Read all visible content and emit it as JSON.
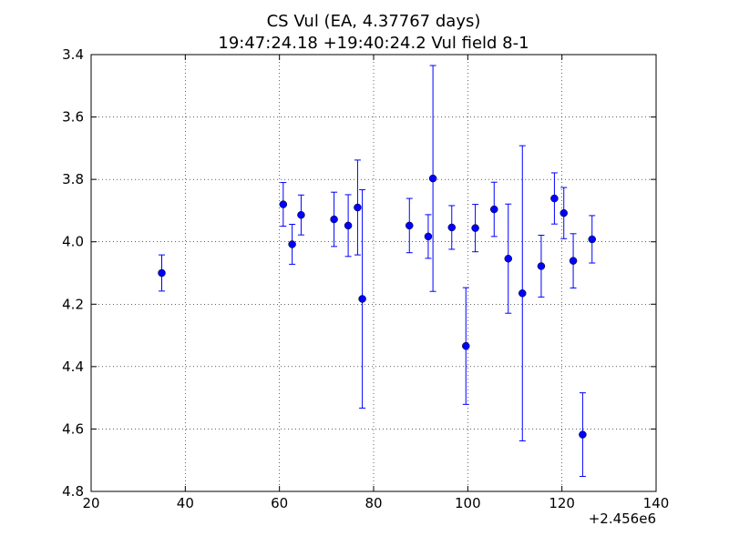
{
  "chart_data": {
    "type": "scatter",
    "title": "CS Vul (EA, 4.37767 days)",
    "subtitle": "19:47:24.18 +19:40:24.2 Vul field 8-1",
    "xlabel": "",
    "ylabel": "",
    "x_offset_label": "+2.456e6",
    "xlim": [
      20,
      140
    ],
    "ylim": [
      3.4,
      4.8
    ],
    "y_inverted": true,
    "grid": true,
    "marker_color": "#0000ff",
    "x_ticks": [
      20,
      40,
      60,
      80,
      100,
      120,
      140
    ],
    "x_tick_labels": [
      "20",
      "40",
      "60",
      "80",
      "100",
      "120",
      "140"
    ],
    "y_ticks": [
      3.4,
      3.6,
      3.8,
      4.0,
      4.2,
      4.4,
      4.6,
      4.8
    ],
    "y_tick_labels": [
      "3.4",
      "3.6",
      "3.8",
      "4.0",
      "4.2",
      "4.4",
      "4.6",
      "4.8"
    ],
    "points": [
      {
        "x": 35.0,
        "y": 4.1,
        "err": 0.058
      },
      {
        "x": 60.8,
        "y": 3.88,
        "err": 0.07
      },
      {
        "x": 62.7,
        "y": 4.008,
        "err": 0.064
      },
      {
        "x": 64.6,
        "y": 3.914,
        "err": 0.064
      },
      {
        "x": 71.6,
        "y": 3.928,
        "err": 0.087
      },
      {
        "x": 74.6,
        "y": 3.948,
        "err": 0.099
      },
      {
        "x": 76.6,
        "y": 3.89,
        "err": 0.152
      },
      {
        "x": 77.6,
        "y": 4.183,
        "err": 0.35
      },
      {
        "x": 87.6,
        "y": 3.948,
        "err": 0.087
      },
      {
        "x": 91.6,
        "y": 3.983,
        "err": 0.07
      },
      {
        "x": 92.6,
        "y": 3.797,
        "err": 0.362
      },
      {
        "x": 96.6,
        "y": 3.954,
        "err": 0.07
      },
      {
        "x": 99.6,
        "y": 4.334,
        "err": 0.187
      },
      {
        "x": 101.6,
        "y": 3.956,
        "err": 0.076
      },
      {
        "x": 105.6,
        "y": 3.896,
        "err": 0.087
      },
      {
        "x": 108.6,
        "y": 4.054,
        "err": 0.175
      },
      {
        "x": 111.6,
        "y": 4.165,
        "err": 0.473
      },
      {
        "x": 115.6,
        "y": 4.078,
        "err": 0.099
      },
      {
        "x": 118.4,
        "y": 3.861,
        "err": 0.082
      },
      {
        "x": 120.4,
        "y": 3.908,
        "err": 0.082
      },
      {
        "x": 122.4,
        "y": 4.061,
        "err": 0.087
      },
      {
        "x": 124.4,
        "y": 4.618,
        "err": 0.134
      },
      {
        "x": 126.4,
        "y": 3.992,
        "err": 0.076
      }
    ]
  }
}
